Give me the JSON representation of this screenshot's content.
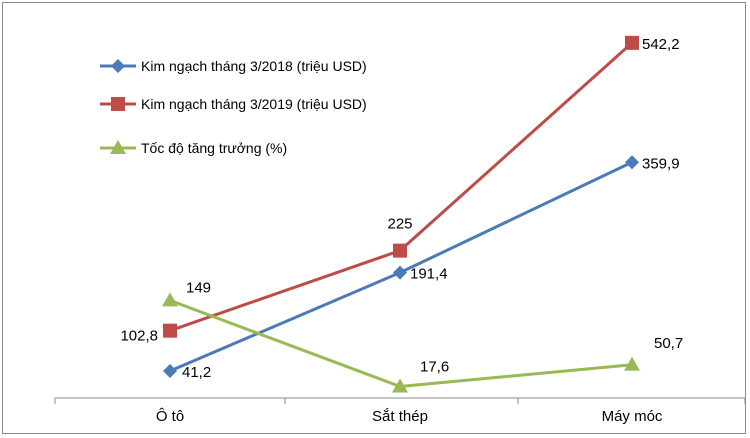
{
  "chart_data": {
    "type": "line",
    "categories": [
      "Ô tô",
      "Sắt thép",
      "Máy móc"
    ],
    "series": [
      {
        "name": "Kim ngạch tháng 3/2018 (triệu USD)",
        "values": [
          41.2,
          191.4,
          359.9
        ],
        "labels": [
          "41,2",
          "191,4",
          "359,9"
        ],
        "color": "#4a7ab8",
        "marker": "diamond"
      },
      {
        "name": "Kim ngạch tháng 3/2019 (triệu USD)",
        "values": [
          102.8,
          225,
          542.2
        ],
        "labels": [
          "102,8",
          "225",
          "542,2"
        ],
        "color": "#be4b48",
        "marker": "square"
      },
      {
        "name": "Tốc độ tăng trưởng (%)",
        "values": [
          149,
          17.6,
          50.7
        ],
        "labels": [
          "149",
          "17,6",
          "50,7"
        ],
        "color": "#98b954",
        "marker": "triangle"
      }
    ],
    "ylim": [
      0,
      600
    ],
    "grid": false,
    "legend_position": "top-left",
    "y_axis_visible": false
  }
}
